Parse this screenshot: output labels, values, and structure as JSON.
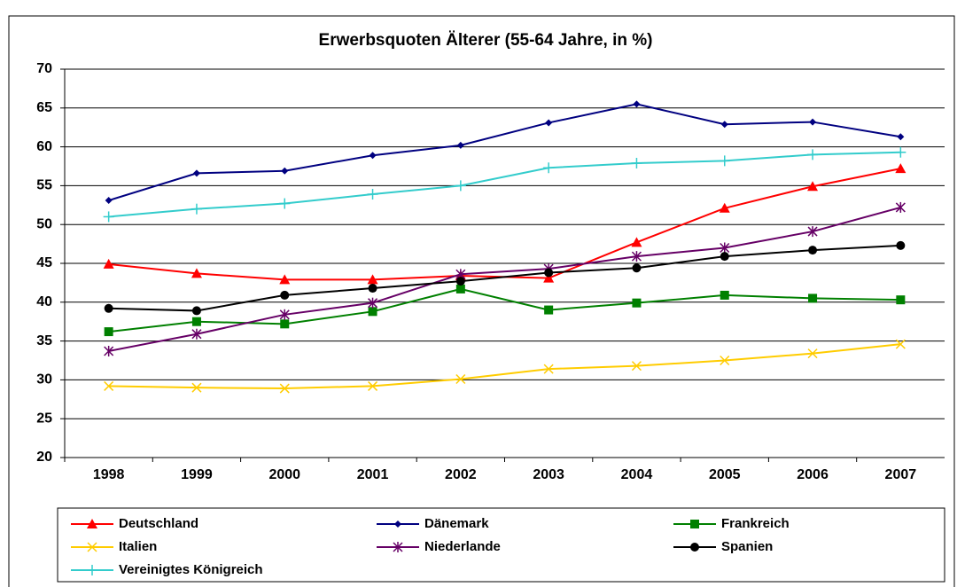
{
  "chart_data": {
    "type": "line",
    "title": "Erwerbsquoten Älterer (55-64 Jahre, in %)",
    "categories": [
      "1998",
      "1999",
      "2000",
      "2001",
      "2002",
      "2003",
      "2004",
      "2005",
      "2006",
      "2007"
    ],
    "series": [
      {
        "name": "Deutschland",
        "color": "#ff0000",
        "marker": "triangle",
        "values": [
          44.9,
          43.7,
          42.9,
          42.9,
          43.4,
          43.1,
          47.7,
          52.1,
          54.9,
          57.2
        ]
      },
      {
        "name": "Dänemark",
        "color": "#000080",
        "marker": "diamond",
        "values": [
          53.1,
          56.6,
          56.9,
          58.9,
          60.2,
          63.1,
          65.5,
          62.9,
          63.2,
          61.3
        ]
      },
      {
        "name": "Frankreich",
        "color": "#008000",
        "marker": "square",
        "values": [
          36.2,
          37.5,
          37.2,
          38.8,
          41.7,
          39.0,
          39.9,
          40.9,
          40.5,
          40.3
        ]
      },
      {
        "name": "Italien",
        "color": "#ffcc00",
        "marker": "x",
        "values": [
          29.2,
          29.0,
          28.9,
          29.2,
          30.1,
          31.4,
          31.8,
          32.5,
          33.4,
          34.6
        ]
      },
      {
        "name": "Niederlande",
        "color": "#660066",
        "marker": "asterisk",
        "values": [
          33.7,
          35.9,
          38.4,
          39.9,
          43.6,
          44.3,
          45.9,
          47.0,
          49.1,
          52.2
        ]
      },
      {
        "name": "Spanien",
        "color": "#000000",
        "marker": "circle",
        "values": [
          39.2,
          38.9,
          40.9,
          41.8,
          42.7,
          43.8,
          44.4,
          45.9,
          46.7,
          47.3
        ]
      },
      {
        "name": "Vereinigtes Königreich",
        "color": "#33cccc",
        "marker": "plus",
        "values": [
          51.0,
          52.0,
          52.7,
          53.9,
          55.0,
          57.3,
          57.9,
          58.2,
          59.0,
          59.3
        ]
      }
    ],
    "ylim": [
      20,
      70
    ],
    "yticks": [
      20,
      25,
      30,
      35,
      40,
      45,
      50,
      55,
      60,
      65,
      70
    ],
    "grid": true
  }
}
